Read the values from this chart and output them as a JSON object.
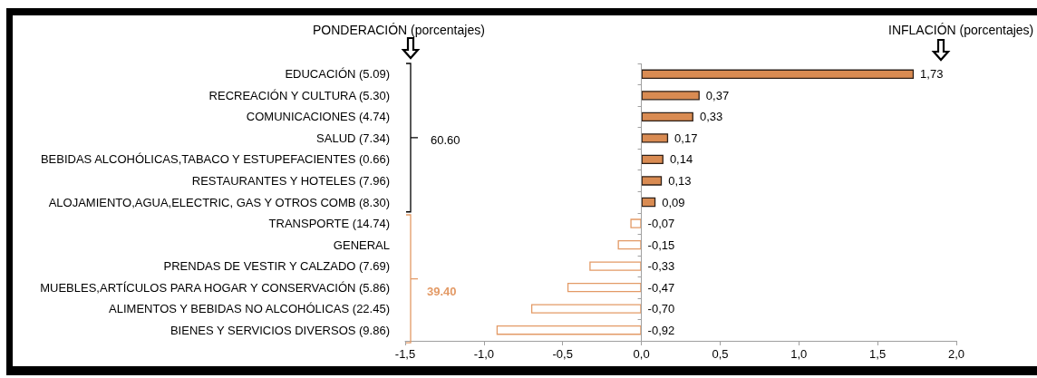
{
  "chart_data": {
    "type": "bar",
    "orientation": "horizontal",
    "categories": [
      "EDUCACIÓN (5.09)",
      "RECREACIÓN Y CULTURA (5.30)",
      "COMUNICACIONES (4.74)",
      "SALUD (7.34)",
      "BEBIDAS ALCOHÓLICAS,TABACO Y ESTUPEFACIENTES (0.66)",
      "RESTAURANTES Y HOTELES (7.96)",
      "ALOJAMIENTO,AGUA,ELECTRIC, GAS Y OTROS COMB (8.30)",
      "TRANSPORTE (14.74)",
      "GENERAL",
      "PRENDAS DE VESTIR Y CALZADO (7.69)",
      "MUEBLES,ARTÍCULOS PARA HOGAR Y CONSERVACIÓN (5.86)",
      "ALIMENTOS Y BEBIDAS NO ALCOHÓLICAS (22.45)",
      "BIENES Y SERVICIOS DIVERSOS (9.86)"
    ],
    "values": [
      1.73,
      0.37,
      0.33,
      0.17,
      0.14,
      0.13,
      0.09,
      -0.07,
      -0.15,
      -0.33,
      -0.47,
      -0.7,
      -0.92
    ],
    "value_labels": [
      "1,73",
      "0,37",
      "0,33",
      "0,17",
      "0,14",
      "0,13",
      "0,09",
      "-0,07",
      "-0,15",
      "-0,33",
      "-0,47",
      "-0,70",
      "-0,92"
    ],
    "colors": [
      "#d98b52",
      "#d98b52",
      "#d98b52",
      "#d98b52",
      "#d98b52",
      "#d98b52",
      "#d98b52",
      "#e39a66",
      "#e39a66",
      "#e39a66",
      "#e39a66",
      "#e39a66",
      "#e39a66"
    ],
    "xlim": [
      -1.5,
      2.0
    ],
    "xticks": [
      {
        "value": -1.5,
        "label": "-1,5"
      },
      {
        "value": -1.0,
        "label": "-1,0"
      },
      {
        "value": -0.5,
        "label": "-0,5"
      },
      {
        "value": 0,
        "label": "0,0"
      },
      {
        "value": 0.5,
        "label": "0,5"
      },
      {
        "value": 1.0,
        "label": "1,0"
      },
      {
        "value": 1.5,
        "label": "1,5"
      },
      {
        "value": 2.0,
        "label": "2,0"
      }
    ],
    "ref_lines": [
      {
        "axis": "x",
        "value": 0,
        "color": "#a0a0a0"
      }
    ],
    "annotations": [
      "PONDERACIÓN (porcentajes)",
      "INFLACIÓN (porcentajes)",
      "60.60",
      "39.40"
    ],
    "grid": false
  }
}
